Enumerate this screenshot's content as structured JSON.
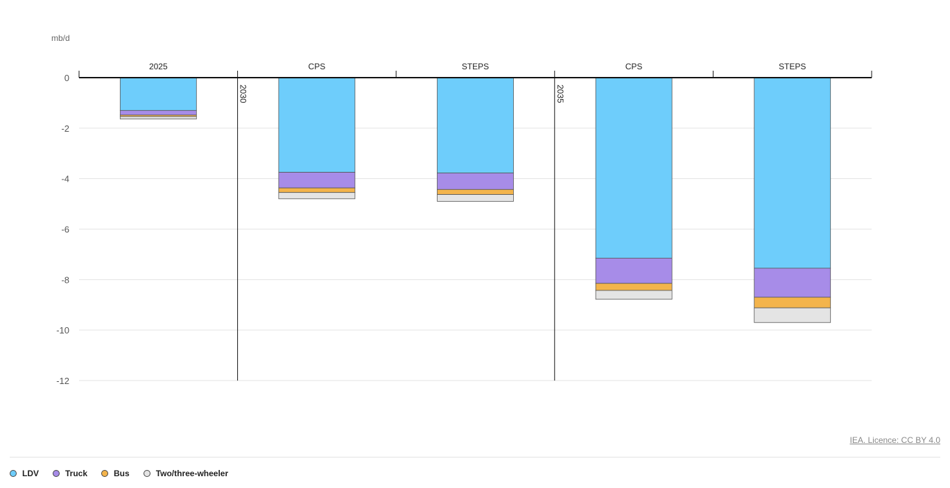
{
  "chart_data": {
    "type": "bar",
    "stacked": true,
    "title": "",
    "ylabel": "mb/d",
    "xlabel": "",
    "ylim": [
      -12,
      0
    ],
    "yticks": [
      0,
      -2,
      -4,
      -6,
      -8,
      -10,
      -12
    ],
    "grid": true,
    "legend_position": "bottom-left",
    "categories": [
      "2025",
      "CPS",
      "STEPS",
      "CPS",
      "STEPS"
    ],
    "category_groups": [
      "",
      "2030",
      "2030",
      "2035",
      "2035"
    ],
    "series": [
      {
        "name": "LDV",
        "color": "#6ecdfb",
        "values": [
          -1.3,
          -3.75,
          -3.78,
          -7.15,
          -7.55
        ]
      },
      {
        "name": "Truck",
        "color": "#a78ce8",
        "values": [
          -0.18,
          -0.62,
          -0.65,
          -1.0,
          -1.15
        ]
      },
      {
        "name": "Bus",
        "color": "#f3b44c",
        "values": [
          -0.06,
          -0.18,
          -0.2,
          -0.28,
          -0.42
        ]
      },
      {
        "name": "Two/three-wheeler",
        "color": "#e4e4e4",
        "values": [
          -0.1,
          -0.25,
          -0.27,
          -0.35,
          -0.58
        ]
      }
    ]
  },
  "credit": "IEA. Licence: CC BY 4.0",
  "legend": [
    {
      "label": "LDV",
      "color": "#6ecdfb"
    },
    {
      "label": "Truck",
      "color": "#a78ce8"
    },
    {
      "label": "Bus",
      "color": "#f3b44c"
    },
    {
      "label": "Two/three-wheeler",
      "color": "#e4e4e4"
    }
  ]
}
